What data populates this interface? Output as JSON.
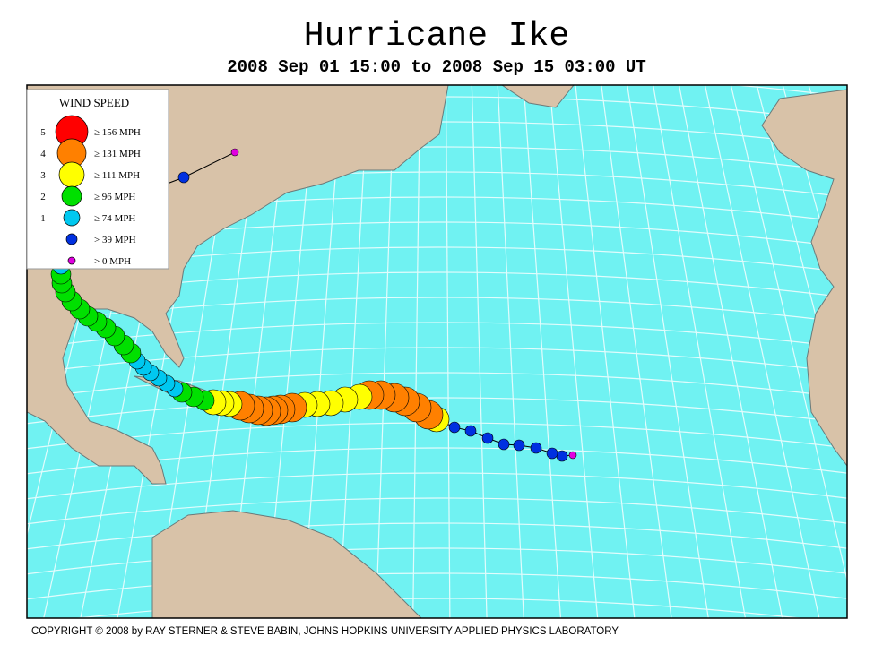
{
  "header": {
    "title": "Hurricane Ike",
    "subtitle": "2008 Sep 01 15:00 to 2008 Sep 15 03:00 UT"
  },
  "legend": {
    "title": "WIND SPEED",
    "entries": [
      {
        "category": "5",
        "label": "≥ 156 MPH",
        "color": "#ff0000"
      },
      {
        "category": "4",
        "label": "≥ 131 MPH",
        "color": "#ff8000"
      },
      {
        "category": "3",
        "label": "≥ 111 MPH",
        "color": "#ffff00"
      },
      {
        "category": "2",
        "label": "≥ 96 MPH",
        "color": "#00e000"
      },
      {
        "category": "1",
        "label": "≥ 74 MPH",
        "color": "#00c8f0"
      },
      {
        "label": "> 39 MPH",
        "color": "#0030e0"
      },
      {
        "label": "> 0 MPH",
        "color": "#e000e0"
      }
    ]
  },
  "footer": {
    "copyright": "COPYRIGHT © 2008 by RAY STERNER & STEVE BABIN, JOHNS HOPKINS UNIVERSITY APPLIED PHYSICS LABORATORY"
  }
}
